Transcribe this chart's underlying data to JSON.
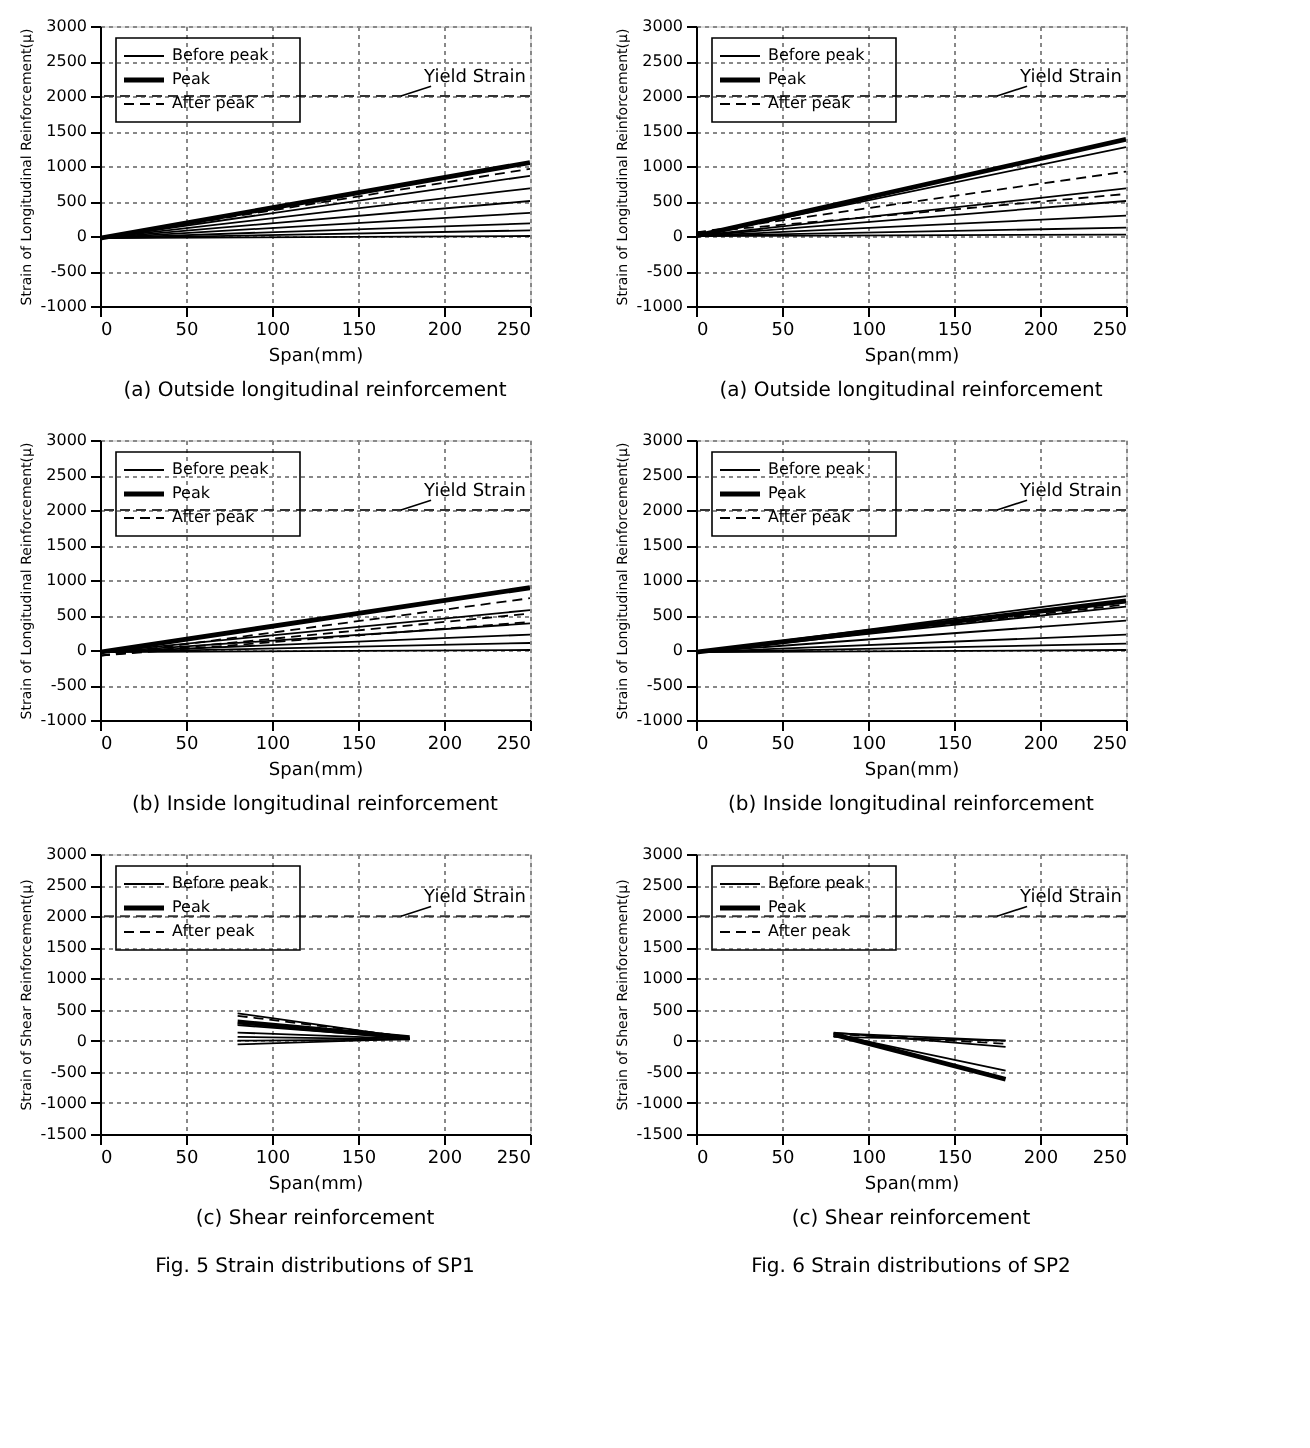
{
  "chart_data": [
    {
      "type": "line",
      "title": "(a)  Outside  longitudinal  reinforcement",
      "xlabel": "Span(mm)",
      "ylabel": "Strain of Longitudinal Reinforcement(μ)",
      "xlim": [
        0,
        250
      ],
      "xticks": [
        0,
        50,
        100,
        150,
        200,
        250
      ],
      "ylim": [
        -1000,
        3000
      ],
      "yticks": [
        -1000,
        -500,
        0,
        500,
        1000,
        1500,
        2000,
        2500,
        3000
      ],
      "grid": true,
      "legend": "top left",
      "ref_lines": [
        {
          "axis": "y",
          "value": 2000,
          "label": "Yield Strain",
          "line_style": "dashed",
          "color": "#333333"
        }
      ],
      "series": [
        {
          "name": "Before peak",
          "color": "#000000",
          "x": [
            0,
            250
          ],
          "values": [
            -30,
            0
          ]
        },
        {
          "color": "#000000",
          "x": [
            0,
            250
          ],
          "values": [
            -30,
            80
          ]
        },
        {
          "color": "#000000",
          "x": [
            0,
            250
          ],
          "values": [
            -30,
            180
          ]
        },
        {
          "color": "#000000",
          "x": [
            0,
            250
          ],
          "values": [
            -30,
            330
          ]
        },
        {
          "color": "#000000",
          "x": [
            0,
            250
          ],
          "values": [
            -30,
            500
          ]
        },
        {
          "color": "#000000",
          "x": [
            0,
            250
          ],
          "values": [
            -30,
            680
          ]
        },
        {
          "color": "#000000",
          "x": [
            0,
            250
          ],
          "values": [
            -30,
            860
          ]
        },
        {
          "name": "Peak",
          "color": "#000000",
          "x": [
            0,
            250
          ],
          "values": [
            -30,
            1050
          ]
        },
        {
          "name": "After peak",
          "color": "#000000",
          "line_style": "dashed",
          "x": [
            0,
            250
          ],
          "values": [
            -30,
            960
          ]
        }
      ]
    },
    {
      "type": "line",
      "title": "(a)  Outside  longitudinal  reinforcement",
      "xlabel": "Span(mm)",
      "ylabel": "Strain of Longitudinal Reinforcement(μ)",
      "xlim": [
        0,
        250
      ],
      "xticks": [
        0,
        50,
        100,
        150,
        200,
        250
      ],
      "ylim": [
        -1000,
        3000
      ],
      "yticks": [
        -1000,
        -500,
        0,
        500,
        1000,
        1500,
        2000,
        2500,
        3000
      ],
      "grid": true,
      "legend": "top left",
      "ref_lines": [
        {
          "axis": "y",
          "value": 2000,
          "label": "Yield Strain",
          "line_style": "dashed",
          "color": "#333333"
        }
      ],
      "series": [
        {
          "name": "Before peak",
          "color": "#000000",
          "x": [
            0,
            250
          ],
          "values": [
            0,
            20
          ]
        },
        {
          "color": "#000000",
          "x": [
            0,
            250
          ],
          "values": [
            0,
            120
          ]
        },
        {
          "color": "#000000",
          "x": [
            0,
            250
          ],
          "values": [
            0,
            290
          ]
        },
        {
          "color": "#000000",
          "x": [
            0,
            250
          ],
          "values": [
            0,
            500
          ]
        },
        {
          "color": "#000000",
          "x": [
            0,
            250
          ],
          "values": [
            0,
            680
          ]
        },
        {
          "color": "#000000",
          "x": [
            0,
            250
          ],
          "values": [
            0,
            1270
          ]
        },
        {
          "name": "Peak",
          "color": "#000000",
          "x": [
            0,
            250
          ],
          "values": [
            0,
            1380
          ]
        },
        {
          "name": "After peak",
          "color": "#000000",
          "line_style": "dashed",
          "x": [
            0,
            250
          ],
          "values": [
            50,
            920
          ]
        },
        {
          "color": "#000000",
          "line_style": "dashed",
          "x": [
            0,
            250
          ],
          "values": [
            50,
            600
          ]
        }
      ]
    },
    {
      "type": "line",
      "title": "(b)  Inside  longitudinal  reinforcement",
      "xlabel": "Span(mm)",
      "ylabel": "Strain of Longitudinal Reinforcement(μ)",
      "xlim": [
        0,
        250
      ],
      "xticks": [
        0,
        50,
        100,
        150,
        200,
        250
      ],
      "ylim": [
        -1000,
        3000
      ],
      "yticks": [
        -1000,
        -500,
        0,
        500,
        1000,
        1500,
        2000,
        2500,
        3000
      ],
      "grid": true,
      "legend": "top left",
      "ref_lines": [
        {
          "axis": "y",
          "value": 2000,
          "label": "Yield Strain",
          "line_style": "dashed",
          "color": "#333333"
        }
      ],
      "series": [
        {
          "name": "Before peak",
          "color": "#000000",
          "x": [
            0,
            250
          ],
          "values": [
            -30,
            0
          ]
        },
        {
          "color": "#000000",
          "x": [
            0,
            250
          ],
          "values": [
            -30,
            100
          ]
        },
        {
          "color": "#000000",
          "x": [
            0,
            250
          ],
          "values": [
            -30,
            220
          ]
        },
        {
          "color": "#000000",
          "x": [
            0,
            250
          ],
          "values": [
            -30,
            380
          ]
        },
        {
          "color": "#000000",
          "x": [
            0,
            250
          ],
          "values": [
            -30,
            570
          ]
        },
        {
          "name": "Peak",
          "color": "#000000",
          "x": [
            0,
            250
          ],
          "values": [
            -30,
            890
          ]
        },
        {
          "name": "After peak",
          "color": "#000000",
          "line_style": "dashed",
          "x": [
            0,
            250
          ],
          "values": [
            -80,
            740
          ]
        },
        {
          "color": "#000000",
          "line_style": "dashed",
          "x": [
            0,
            250
          ],
          "values": [
            -80,
            520
          ]
        },
        {
          "color": "#000000",
          "line_style": "dashed",
          "x": [
            0,
            250
          ],
          "values": [
            -80,
            400
          ]
        }
      ]
    },
    {
      "type": "line",
      "title": "(b)  Inside  longitudinal  reinforcement",
      "xlabel": "Span(mm)",
      "ylabel": "Strain of Longitudinal Reinforcement(μ)",
      "xlim": [
        0,
        250
      ],
      "xticks": [
        0,
        50,
        100,
        150,
        200,
        250
      ],
      "ylim": [
        -1000,
        3000
      ],
      "yticks": [
        -1000,
        -500,
        0,
        500,
        1000,
        1500,
        2000,
        2500,
        3000
      ],
      "grid": true,
      "legend": "top left",
      "ref_lines": [
        {
          "axis": "y",
          "value": 2000,
          "label": "Yield Strain",
          "line_style": "dashed",
          "color": "#333333"
        }
      ],
      "series": [
        {
          "name": "Before peak",
          "color": "#000000",
          "x": [
            0,
            250
          ],
          "values": [
            -30,
            0
          ]
        },
        {
          "color": "#000000",
          "x": [
            0,
            250
          ],
          "values": [
            -30,
            90
          ]
        },
        {
          "color": "#000000",
          "x": [
            0,
            250
          ],
          "values": [
            -30,
            220
          ]
        },
        {
          "color": "#000000",
          "x": [
            0,
            250
          ],
          "values": [
            -30,
            420
          ]
        },
        {
          "color": "#000000",
          "x": [
            0,
            250
          ],
          "values": [
            -30,
            620
          ]
        },
        {
          "color": "#000000",
          "x": [
            0,
            250
          ],
          "values": [
            -30,
            770
          ]
        },
        {
          "name": "Peak",
          "color": "#000000",
          "x": [
            0,
            250
          ],
          "values": [
            -30,
            700
          ]
        },
        {
          "name": "After peak",
          "color": "#000000",
          "line_style": "dashed",
          "x": [
            0,
            250
          ],
          "values": [
            -30,
            650
          ]
        }
      ]
    },
    {
      "type": "line",
      "title": "(c)  Shear  reinforcement",
      "annotations": [
        "Fig. 5 Strain distributions of SP1"
      ],
      "xlabel": "Span(mm)",
      "ylabel": "Strain of Shear Reinforcement(μ)",
      "xlim": [
        0,
        250
      ],
      "xticks": [
        0,
        50,
        100,
        150,
        200,
        250
      ],
      "ylim": [
        -1500,
        3000
      ],
      "yticks": [
        -1500,
        -1000,
        -500,
        0,
        500,
        1000,
        1500,
        2000,
        2500,
        3000
      ],
      "grid": true,
      "legend": "top left",
      "ref_lines": [
        {
          "axis": "y",
          "value": 2000,
          "label": "Yield Strain",
          "line_style": "dashed",
          "color": "#333333"
        }
      ],
      "series": [
        {
          "name": "Before peak",
          "color": "#000000",
          "x": [
            80,
            180
          ],
          "values": [
            -60,
            30
          ]
        },
        {
          "color": "#000000",
          "x": [
            80,
            180
          ],
          "values": [
            0,
            20
          ]
        },
        {
          "color": "#000000",
          "x": [
            80,
            180
          ],
          "values": [
            60,
            20
          ]
        },
        {
          "color": "#000000",
          "x": [
            80,
            180
          ],
          "values": [
            130,
            30
          ]
        },
        {
          "color": "#000000",
          "x": [
            80,
            180
          ],
          "values": [
            250,
            40
          ]
        },
        {
          "color": "#000000",
          "x": [
            80,
            180
          ],
          "values": [
            440,
            50
          ]
        },
        {
          "name": "Peak",
          "color": "#000000",
          "x": [
            80,
            180
          ],
          "values": [
            300,
            50
          ]
        },
        {
          "name": "After peak",
          "color": "#000000",
          "line_style": "dashed",
          "x": [
            80,
            180
          ],
          "values": [
            400,
            60
          ]
        }
      ]
    },
    {
      "type": "line",
      "title": "(c)  Shear  reinforcement",
      "annotations": [
        "Fig. 6 Strain distributions of SP2"
      ],
      "xlabel": "Span(mm)",
      "ylabel": "Strain of Shear Reinforcement(μ)",
      "xlim": [
        0,
        250
      ],
      "xticks": [
        0,
        50,
        100,
        150,
        200,
        250
      ],
      "ylim": [
        -1500,
        3000
      ],
      "yticks": [
        -1500,
        -1000,
        -500,
        0,
        500,
        1000,
        1500,
        2000,
        2500,
        3000
      ],
      "grid": true,
      "legend": "top left",
      "ref_lines": [
        {
          "axis": "y",
          "value": 2000,
          "label": "Yield Strain",
          "line_style": "dashed",
          "color": "#333333"
        }
      ],
      "series": [
        {
          "name": "Before peak",
          "color": "#000000",
          "x": [
            80,
            180
          ],
          "values": [
            130,
            -100
          ]
        },
        {
          "color": "#000000",
          "x": [
            80,
            180
          ],
          "values": [
            60,
            0
          ]
        },
        {
          "color": "#000000",
          "x": [
            80,
            180
          ],
          "values": [
            100,
            -480
          ]
        },
        {
          "name": "Peak",
          "color": "#000000",
          "x": [
            80,
            180
          ],
          "values": [
            100,
            -620
          ]
        },
        {
          "color": "#000000",
          "x": [
            80,
            180
          ],
          "values": [
            120,
            0
          ]
        },
        {
          "name": "After peak",
          "color": "#000000",
          "line_style": "dashed",
          "x": [
            80,
            180
          ],
          "values": [
            110,
            -50
          ]
        }
      ]
    }
  ]
}
